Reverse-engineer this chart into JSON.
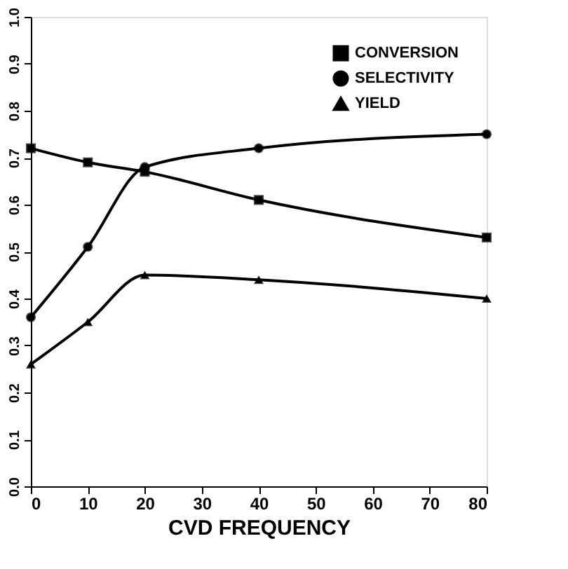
{
  "chart_data": {
    "type": "line",
    "xlabel": "CVD FREQUENCY",
    "x": [
      0,
      10,
      20,
      40,
      80
    ],
    "series": [
      {
        "name": "CONVERSION",
        "color": "#000000",
        "marker": "square",
        "values": [
          0.72,
          0.69,
          0.67,
          0.61,
          0.53
        ]
      },
      {
        "name": "SELECTIVITY",
        "color": "#000000",
        "marker": "circle",
        "values": [
          0.36,
          0.51,
          0.68,
          0.72,
          0.75
        ]
      },
      {
        "name": "YIELD",
        "color": "#000000",
        "marker": "triangle",
        "values": [
          0.26,
          0.35,
          0.45,
          0.44,
          0.4
        ]
      }
    ],
    "xlim": [
      0,
      80
    ],
    "xticks": [
      0,
      10,
      20,
      30,
      40,
      50,
      60,
      70,
      80
    ],
    "ylim": [
      0,
      1
    ],
    "yticks": [
      {
        "value": 0,
        "label": "0.0"
      },
      0.1,
      0.2,
      0.3,
      0.4,
      0.5,
      0.6,
      0.7,
      0.8,
      0.9,
      {
        "value": 1,
        "label": "1.0"
      }
    ],
    "grid": false,
    "legend": "top right",
    "line_style": "solid"
  }
}
